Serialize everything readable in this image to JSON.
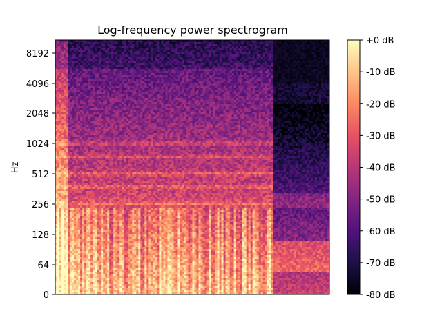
{
  "chart_data": {
    "type": "heatmap",
    "title": "Log-frequency power spectrogram",
    "xlabel": "",
    "ylabel": "Hz",
    "y_scale": "log",
    "y_ticks": [
      "0",
      "64",
      "128",
      "256",
      "512",
      "1024",
      "2048",
      "4096",
      "8192"
    ],
    "y_tick_values": [
      0,
      64,
      128,
      256,
      512,
      1024,
      2048,
      4096,
      8192
    ],
    "ylim": [
      0,
      11025
    ],
    "x_ticks": [],
    "colormap": "magma",
    "colorbar": {
      "ticks": [
        "+0 dB",
        "-10 dB",
        "-20 dB",
        "-30 dB",
        "-40 dB",
        "-50 dB",
        "-60 dB",
        "-70 dB",
        "-80 dB"
      ],
      "tick_values": [
        0,
        -10,
        -20,
        -30,
        -40,
        -50,
        -60,
        -70,
        -80
      ],
      "range": [
        -80,
        0
      ]
    },
    "colors": [
      "#000004",
      "#1d1147",
      "#51127c",
      "#822681",
      "#b73779",
      "#e75263",
      "#fc8961",
      "#fec488",
      "#fcfdbf"
    ],
    "summary": {
      "sound_end_fraction": 0.79,
      "strong_harmonic_bands_hz": [
        256,
        380,
        512,
        760,
        1024
      ],
      "loudest_region_hz": [
        20,
        256
      ]
    }
  }
}
